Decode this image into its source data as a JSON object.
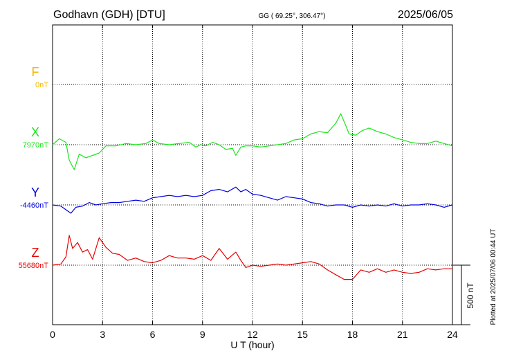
{
  "header": {
    "station": "Godhavn (GDH)  [DTU]",
    "coords": "GG ( 69.25°, 306.47°)",
    "date": "2025/06/05"
  },
  "plotted_note": "Plotted at 2025/07/06 00:44 UT",
  "chart_data": {
    "type": "line",
    "title": "Godhavn (GDH)  [DTU]",
    "xlabel": "U T (hour)",
    "xlim": [
      0,
      24
    ],
    "xticks": [
      "0",
      "3",
      "6",
      "9",
      "12",
      "15",
      "18",
      "21",
      "24"
    ],
    "grid": true,
    "scale_bar": {
      "label": "500 nT",
      "value_nT": 500
    },
    "components": [
      {
        "name": "F",
        "baseline_label": "0nT",
        "baseline_nT": 0,
        "color": "#f2b800",
        "x": [],
        "y": []
      },
      {
        "name": "X",
        "baseline_label": "7970nT",
        "baseline_nT": 7970,
        "color": "#19e619",
        "x": [
          0,
          0.4,
          0.8,
          1.0,
          1.3,
          1.6,
          2.0,
          2.4,
          2.8,
          3.2,
          3.8,
          4.4,
          5.0,
          5.6,
          6.0,
          6.4,
          7.0,
          7.6,
          8.2,
          8.6,
          8.9,
          9.2,
          9.6,
          10.0,
          10.4,
          10.8,
          11.0,
          11.3,
          11.6,
          12.0,
          12.5,
          13.0,
          13.5,
          14.0,
          14.5,
          15.0,
          15.5,
          16.0,
          16.5,
          17.0,
          17.3,
          17.6,
          17.8,
          18.2,
          18.6,
          19.0,
          19.5,
          20.0,
          20.5,
          21.0,
          21.5,
          22.0,
          22.5,
          23.0,
          23.5,
          24.0
        ],
        "y": [
          7970,
          8020,
          7990,
          7840,
          7760,
          7890,
          7860,
          7880,
          7900,
          7960,
          7960,
          7980,
          7970,
          7980,
          8010,
          7980,
          7970,
          7980,
          7990,
          7950,
          7970,
          7960,
          7990,
          7970,
          7930,
          7940,
          7880,
          7950,
          7960,
          7960,
          7950,
          7960,
          7970,
          7980,
          8010,
          8020,
          8060,
          8080,
          8070,
          8150,
          8230,
          8130,
          8060,
          8050,
          8090,
          8110,
          8080,
          8060,
          8030,
          8010,
          7990,
          7980,
          7980,
          8000,
          7980,
          7960
        ]
      },
      {
        "name": "Y",
        "baseline_label": "-4460nT",
        "baseline_nT": -4460,
        "color": "#0000e0",
        "x": [
          0,
          0.5,
          0.9,
          1.1,
          1.4,
          1.8,
          2.2,
          2.6,
          3.0,
          3.5,
          4.0,
          4.5,
          5.0,
          5.5,
          6.0,
          6.5,
          7.0,
          7.5,
          8.0,
          8.5,
          9.0,
          9.5,
          10.0,
          10.5,
          11.0,
          11.3,
          11.6,
          12.0,
          12.5,
          13.0,
          13.5,
          14.0,
          14.5,
          15.0,
          15.5,
          16.0,
          16.5,
          17.0,
          17.5,
          18.0,
          18.5,
          19.0,
          19.5,
          20.0,
          20.5,
          21.0,
          21.5,
          22.0,
          22.5,
          23.0,
          23.5,
          24.0
        ],
        "y": [
          -4460,
          -4470,
          -4510,
          -4530,
          -4480,
          -4470,
          -4440,
          -4460,
          -4450,
          -4440,
          -4440,
          -4430,
          -4420,
          -4430,
          -4400,
          -4390,
          -4380,
          -4390,
          -4380,
          -4390,
          -4380,
          -4340,
          -4330,
          -4350,
          -4310,
          -4350,
          -4330,
          -4370,
          -4380,
          -4400,
          -4420,
          -4390,
          -4400,
          -4410,
          -4440,
          -4450,
          -4470,
          -4460,
          -4460,
          -4480,
          -4460,
          -4470,
          -4460,
          -4470,
          -4450,
          -4470,
          -4460,
          -4460,
          -4450,
          -4460,
          -4480,
          -4460
        ]
      },
      {
        "name": "Z",
        "baseline_label": "55680nT",
        "baseline_nT": 55680,
        "color": "#e80000",
        "x": [
          0,
          0.5,
          0.8,
          1.0,
          1.2,
          1.5,
          1.8,
          2.1,
          2.4,
          2.8,
          3.2,
          3.6,
          4.0,
          4.5,
          5.0,
          5.5,
          6.0,
          6.5,
          7.0,
          7.5,
          8.0,
          8.5,
          9.0,
          9.5,
          10.0,
          10.5,
          11.0,
          11.3,
          11.6,
          12.0,
          12.5,
          13.0,
          13.5,
          14.0,
          14.5,
          15.0,
          15.5,
          16.0,
          16.5,
          17.0,
          17.5,
          18.0,
          18.5,
          19.0,
          19.5,
          20.0,
          20.5,
          21.0,
          21.5,
          22.0,
          22.5,
          23.0,
          23.5,
          24.0
        ],
        "y": [
          55680,
          55690,
          55750,
          55930,
          55820,
          55870,
          55790,
          55810,
          55730,
          55910,
          55830,
          55780,
          55770,
          55720,
          55740,
          55710,
          55700,
          55720,
          55760,
          55740,
          55740,
          55730,
          55760,
          55720,
          55820,
          55730,
          55790,
          55720,
          55660,
          55680,
          55670,
          55680,
          55690,
          55680,
          55690,
          55700,
          55710,
          55690,
          55640,
          55600,
          55560,
          55560,
          55640,
          55620,
          55650,
          55620,
          55640,
          55620,
          55610,
          55620,
          55650,
          55640,
          55650,
          55650
        ]
      }
    ]
  }
}
